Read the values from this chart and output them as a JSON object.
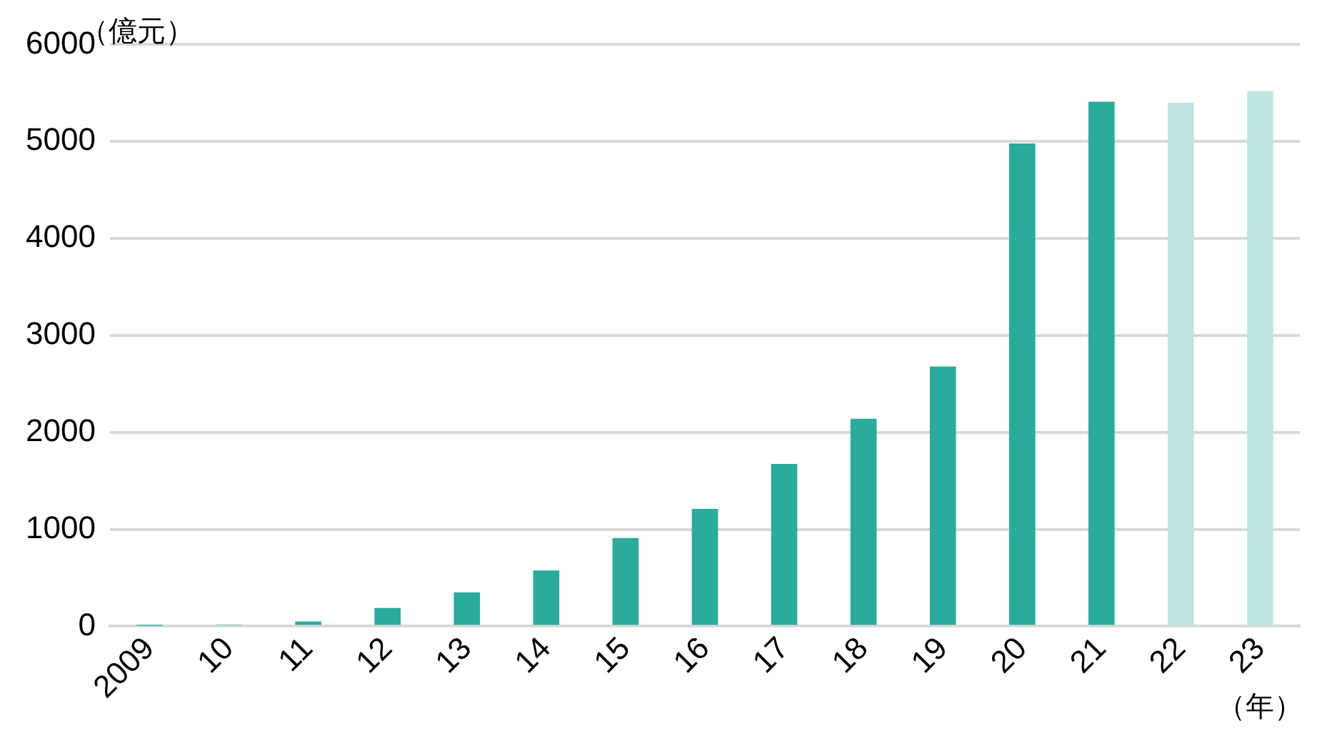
{
  "chart_data": {
    "type": "bar",
    "ylabel": "（億元）",
    "xlabel": "（年）",
    "categories": [
      "2009",
      "10",
      "11",
      "12",
      "13",
      "14",
      "15",
      "16",
      "17",
      "18",
      "19",
      "20",
      "21",
      "22",
      "23"
    ],
    "values": [
      5,
      10,
      50,
      190,
      350,
      575,
      910,
      1210,
      1675,
      2140,
      2680,
      4980,
      5410,
      5400,
      5520
    ],
    "colors": [
      "#2aab9b",
      "#2aab9b",
      "#2aab9b",
      "#2aab9b",
      "#2aab9b",
      "#2aab9b",
      "#2aab9b",
      "#2aab9b",
      "#2aab9b",
      "#2aab9b",
      "#2aab9b",
      "#2aab9b",
      "#2aab9b",
      "#bfe6e0",
      "#bfe6e0"
    ],
    "ylim": [
      0,
      6000
    ],
    "yticks": [
      0,
      1000,
      2000,
      3000,
      4000,
      5000,
      6000
    ],
    "grid": "y",
    "legend": false
  }
}
